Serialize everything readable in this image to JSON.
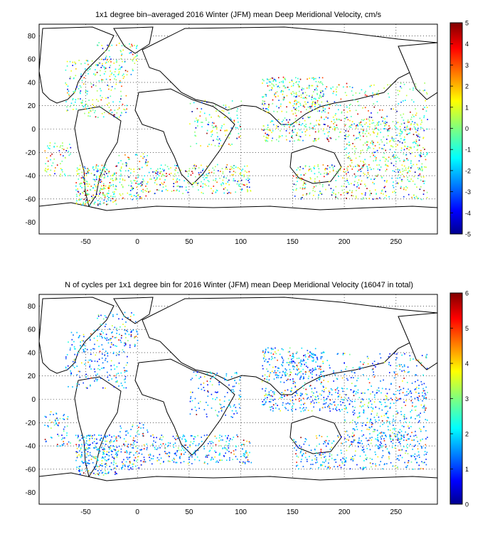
{
  "chart_data": [
    {
      "type": "heatmap",
      "title": "1x1 degree bin–averaged 2016 Winter (JFM) mean Deep Meridional Velocity, cm/s",
      "xlabel": "",
      "ylabel": "",
      "xlim": [
        -95,
        290
      ],
      "ylim": [
        -90,
        90
      ],
      "x_ticks": [
        "-50",
        "0",
        "50",
        "100",
        "150",
        "200",
        "250"
      ],
      "y_ticks": [
        "80",
        "60",
        "40",
        "20",
        "0",
        "-20",
        "-40",
        "-60",
        "-80"
      ],
      "grid": true,
      "colormap": "jet",
      "colorbar": {
        "min": -5,
        "max": 5,
        "ticks": [
          "5",
          "4",
          "3",
          "2",
          "1",
          "0",
          "-1",
          "-2",
          "-3",
          "-4",
          "-5"
        ]
      },
      "cells_description": "sparse 1x1 degree bins over oceans"
    },
    {
      "type": "heatmap",
      "title": "N of cycles per 1x1 degree bin for 2016 Winter (JFM) mean Deep Meridional Velocity (16047 in total)",
      "xlabel": "",
      "ylabel": "",
      "xlim": [
        -95,
        290
      ],
      "ylim": [
        -90,
        90
      ],
      "x_ticks": [
        "-50",
        "0",
        "50",
        "100",
        "150",
        "200",
        "250"
      ],
      "y_ticks": [
        "80",
        "60",
        "40",
        "20",
        "0",
        "-20",
        "-40",
        "-60",
        "-80"
      ],
      "grid": true,
      "colormap": "jet",
      "colorbar": {
        "min": 0,
        "max": 6,
        "ticks": [
          "6",
          "5",
          "4",
          "3",
          "2",
          "1",
          "0"
        ]
      },
      "total_cycles": 16047
    }
  ]
}
